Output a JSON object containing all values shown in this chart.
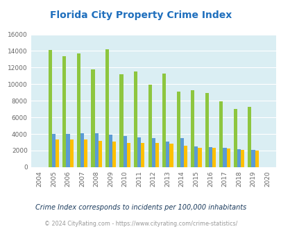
{
  "title": "Florida City Property Crime Index",
  "years": [
    2004,
    2005,
    2006,
    2007,
    2008,
    2009,
    2010,
    2011,
    2012,
    2013,
    2014,
    2015,
    2016,
    2017,
    2018,
    2019,
    2020
  ],
  "florida_city": [
    0,
    14100,
    13350,
    13700,
    11800,
    14200,
    11200,
    11500,
    9950,
    11300,
    9100,
    9250,
    8900,
    7950,
    7050,
    7300,
    0
  ],
  "florida": [
    0,
    4000,
    4000,
    4100,
    4050,
    3900,
    3750,
    3600,
    3500,
    3100,
    3500,
    2500,
    2400,
    2300,
    2150,
    2100,
    0
  ],
  "national": [
    0,
    3350,
    3300,
    3300,
    3200,
    3050,
    2950,
    2950,
    2900,
    2800,
    2600,
    2350,
    2350,
    2250,
    2100,
    2000,
    0
  ],
  "color_city": "#8dc63f",
  "color_florida": "#5b9bd5",
  "color_national": "#ffc000",
  "bg_color": "#daeef3",
  "ylim": [
    0,
    16000
  ],
  "yticks": [
    0,
    2000,
    4000,
    6000,
    8000,
    10000,
    12000,
    14000,
    16000
  ],
  "bar_width": 0.25,
  "subtitle": "Crime Index corresponds to incidents per 100,000 inhabitants",
  "footer": "© 2024 CityRating.com - https://www.cityrating.com/crime-statistics/",
  "title_color": "#1f6fbd",
  "subtitle_color": "#1a3a5c",
  "footer_color": "#999999"
}
